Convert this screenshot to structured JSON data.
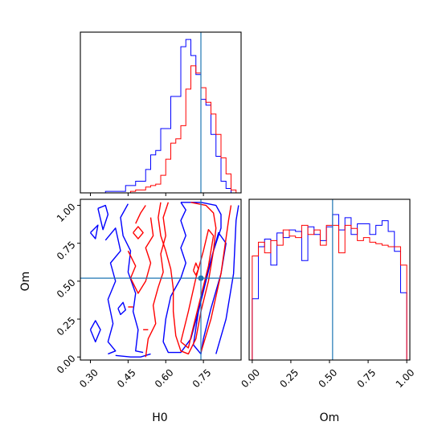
{
  "chart_data": {
    "type": "corner",
    "parameters": [
      "H0",
      "Om"
    ],
    "truth": {
      "H0": 0.74,
      "Om": 0.52,
      "color": "#1f77b4"
    },
    "colors": {
      "blue": "#0000ff",
      "red": "#ff0000",
      "truth": "#1f77b4"
    },
    "panels": [
      {
        "id": "hist-h0",
        "type": "histogram",
        "x_param": "H0",
        "xlim": [
          0.26,
          0.9
        ],
        "ylim": [
          0,
          1.1
        ],
        "bin_edges": [
          0.26,
          0.28,
          0.3,
          0.32,
          0.34,
          0.36,
          0.38,
          0.4,
          0.42,
          0.44,
          0.46,
          0.48,
          0.5,
          0.52,
          0.54,
          0.56,
          0.58,
          0.6,
          0.62,
          0.64,
          0.66,
          0.68,
          0.7,
          0.72,
          0.74,
          0.76,
          0.78,
          0.8,
          0.82,
          0.84,
          0.86,
          0.88,
          0.9
        ],
        "series": [
          {
            "name": "blue",
            "color": "#0000ff",
            "values": [
              0,
              0,
              0,
              0,
              0,
              0.01,
              0.01,
              0.01,
              0.01,
              0.05,
              0.05,
              0.08,
              0.08,
              0.16,
              0.26,
              0.29,
              0.44,
              0.44,
              0.66,
              0.66,
              1.0,
              1.05,
              0.94,
              0.81,
              0.64,
              0.6,
              0.4,
              0.25,
              0.08,
              0.03,
              0,
              0
            ]
          },
          {
            "name": "red",
            "color": "#ff0000",
            "values": [
              0,
              0,
              0,
              0,
              0,
              0,
              0,
              0,
              0,
              0,
              0.01,
              0.02,
              0.02,
              0.04,
              0.05,
              0.06,
              0.12,
              0.23,
              0.34,
              0.37,
              0.46,
              0.71,
              0.87,
              0.82,
              0.72,
              0.62,
              0.54,
              0.4,
              0.24,
              0.13,
              0.02,
              0
            ]
          }
        ]
      },
      {
        "id": "contour-h0-om",
        "type": "contour",
        "x_param": "H0",
        "y_param": "Om",
        "xlim": [
          0.26,
          0.9
        ],
        "ylim": [
          -0.02,
          1.04
        ],
        "xticks": [
          0.3,
          0.45,
          0.6,
          0.75
        ],
        "xtick_labels": [
          "0.30",
          "0.45",
          "0.60",
          "0.75"
        ],
        "yticks": [
          0.0,
          0.25,
          0.5,
          0.75,
          1.0
        ],
        "ytick_labels": [
          "0.00",
          "0.25",
          "0.50",
          "0.75",
          "1.00"
        ],
        "xlabel": "H0",
        "ylabel": "Om",
        "series": [
          {
            "name": "blue",
            "color": "#0000ff",
            "paths": [
              [
                [
                  0.66,
                  1.02
                ],
                [
                  0.68,
                  0.97
                ],
                [
                  0.66,
                  0.9
                ],
                [
                  0.68,
                  0.8
                ],
                [
                  0.66,
                  0.72
                ],
                [
                  0.68,
                  0.62
                ],
                [
                  0.66,
                  0.52
                ],
                [
                  0.62,
                  0.4
                ],
                [
                  0.6,
                  0.25
                ],
                [
                  0.59,
                  0.1
                ],
                [
                  0.61,
                  0.03
                ],
                [
                  0.66,
                  0.03
                ],
                [
                  0.7,
                  0.12
                ],
                [
                  0.73,
                  0.3
                ],
                [
                  0.76,
                  0.5
                ],
                [
                  0.79,
                  0.7
                ],
                [
                  0.82,
                  0.85
                ],
                [
                  0.82,
                  0.94
                ],
                [
                  0.8,
                  1.0
                ],
                [
                  0.74,
                  1.02
                ],
                [
                  0.66,
                  1.02
                ]
              ],
              [
                [
                  0.71,
                  0.08
                ],
                [
                  0.73,
                  0.3
                ],
                [
                  0.76,
                  0.52
                ],
                [
                  0.79,
                  0.7
                ],
                [
                  0.81,
                  0.82
                ],
                [
                  0.84,
                  0.75
                ],
                [
                  0.82,
                  0.55
                ],
                [
                  0.78,
                  0.32
                ],
                [
                  0.75,
                  0.12
                ],
                [
                  0.74,
                  0.02
                ],
                [
                  0.71,
                  0.08
                ]
              ],
              [
                [
                  0.8,
                  0.02
                ],
                [
                  0.84,
                  0.25
                ],
                [
                  0.87,
                  0.55
                ],
                [
                  0.88,
                  0.9
                ],
                [
                  0.89,
                  1.0
                ]
              ],
              [
                [
                  0.33,
                  0.98
                ],
                [
                  0.35,
                  0.84
                ],
                [
                  0.37,
                  0.94
                ],
                [
                  0.36,
                  1.0
                ],
                [
                  0.33,
                  0.98
                ]
              ],
              [
                [
                  0.3,
                  0.82
                ],
                [
                  0.33,
                  0.87
                ],
                [
                  0.32,
                  0.78
                ],
                [
                  0.3,
                  0.82
                ]
              ],
              [
                [
                  0.36,
                  0.77
                ],
                [
                  0.4,
                  0.85
                ],
                [
                  0.42,
                  0.7
                ],
                [
                  0.38,
                  0.62
                ],
                [
                  0.4,
                  0.5
                ],
                [
                  0.37,
                  0.38
                ],
                [
                  0.39,
                  0.22
                ],
                [
                  0.37,
                  0.1
                ],
                [
                  0.4,
                  0.04
                ],
                [
                  0.37,
                  0.02
                ]
              ],
              [
                [
                  0.45,
                  1.01
                ],
                [
                  0.42,
                  0.92
                ],
                [
                  0.43,
                  0.8
                ],
                [
                  0.46,
                  0.7
                ],
                [
                  0.45,
                  0.56
                ],
                [
                  0.48,
                  0.42
                ],
                [
                  0.47,
                  0.3
                ],
                [
                  0.49,
                  0.18
                ],
                [
                  0.48,
                  0.04
                ],
                [
                  0.51,
                  0.03
                ]
              ],
              [
                [
                  0.3,
                  0.18
                ],
                [
                  0.32,
                  0.24
                ],
                [
                  0.34,
                  0.18
                ],
                [
                  0.32,
                  0.1
                ],
                [
                  0.3,
                  0.18
                ]
              ],
              [
                [
                  0.41,
                  0.32
                ],
                [
                  0.43,
                  0.36
                ],
                [
                  0.44,
                  0.31
                ],
                [
                  0.42,
                  0.28
                ],
                [
                  0.41,
                  0.32
                ]
              ],
              [
                [
                  0.4,
                  0.01
                ],
                [
                  0.46,
                  0.0
                ],
                [
                  0.5,
                  0.0
                ],
                [
                  0.54,
                  0.02
                ]
              ]
            ]
          },
          {
            "name": "red",
            "color": "#ff0000",
            "paths": [
              [
                [
                  0.58,
                  1.02
                ],
                [
                  0.57,
                  0.92
                ],
                [
                  0.58,
                  0.8
                ],
                [
                  0.6,
                  0.7
                ],
                [
                  0.62,
                  0.58
                ],
                [
                  0.63,
                  0.45
                ],
                [
                  0.63,
                  0.3
                ],
                [
                  0.64,
                  0.14
                ],
                [
                  0.66,
                  0.04
                ],
                [
                  0.69,
                  0.02
                ],
                [
                  0.72,
                  0.12
                ],
                [
                  0.74,
                  0.3
                ],
                [
                  0.77,
                  0.5
                ],
                [
                  0.79,
                  0.7
                ],
                [
                  0.8,
                  0.85
                ],
                [
                  0.79,
                  0.95
                ],
                [
                  0.76,
                  1.0
                ],
                [
                  0.7,
                  1.02
                ]
              ],
              [
                [
                  0.66,
                  0.1
                ],
                [
                  0.69,
                  0.3
                ],
                [
                  0.72,
                  0.52
                ],
                [
                  0.75,
                  0.7
                ],
                [
                  0.77,
                  0.84
                ],
                [
                  0.79,
                  0.8
                ],
                [
                  0.77,
                  0.6
                ],
                [
                  0.74,
                  0.4
                ],
                [
                  0.71,
                  0.2
                ],
                [
                  0.69,
                  0.06
                ],
                [
                  0.66,
                  0.1
                ]
              ],
              [
                [
                  0.74,
                  0.03
                ],
                [
                  0.78,
                  0.25
                ],
                [
                  0.82,
                  0.55
                ],
                [
                  0.85,
                  0.9
                ],
                [
                  0.86,
                  1.0
                ]
              ],
              [
                [
                  0.48,
                  0.88
                ],
                [
                  0.5,
                  0.95
                ],
                [
                  0.52,
                  1.0
                ]
              ],
              [
                [
                  0.47,
                  0.82
                ],
                [
                  0.49,
                  0.86
                ],
                [
                  0.51,
                  0.82
                ],
                [
                  0.49,
                  0.78
                ],
                [
                  0.47,
                  0.82
                ]
              ],
              [
                [
                  0.45,
                  0.7
                ],
                [
                  0.48,
                  0.6
                ],
                [
                  0.46,
                  0.52
                ],
                [
                  0.49,
                  0.42
                ],
                [
                  0.52,
                  0.5
                ],
                [
                  0.54,
                  0.62
                ],
                [
                  0.52,
                  0.72
                ],
                [
                  0.55,
                  0.8
                ],
                [
                  0.54,
                  0.92
                ]
              ],
              [
                [
                  0.52,
                  0.0
                ],
                [
                  0.53,
                  0.12
                ],
                [
                  0.56,
                  0.22
                ],
                [
                  0.55,
                  0.34
                ],
                [
                  0.57,
                  0.46
                ],
                [
                  0.59,
                  0.56
                ],
                [
                  0.58,
                  0.68
                ],
                [
                  0.6,
                  0.8
                ],
                [
                  0.59,
                  0.92
                ],
                [
                  0.61,
                  1.02
                ]
              ],
              [
                [
                  0.45,
                  0.33
                ],
                [
                  0.47,
                  0.33
                ]
              ],
              [
                [
                  0.51,
                  0.18
                ],
                [
                  0.53,
                  0.18
                ]
              ],
              [
                [
                  0.71,
                  0.57
                ],
                [
                  0.72,
                  0.62
                ],
                [
                  0.73,
                  0.58
                ],
                [
                  0.72,
                  0.54
                ],
                [
                  0.71,
                  0.57
                ]
              ]
            ]
          }
        ]
      },
      {
        "id": "hist-om",
        "type": "histogram",
        "x_param": "Om",
        "xlim": [
          -0.02,
          1.02
        ],
        "ylim": [
          0,
          1.05
        ],
        "xticks": [
          0.0,
          0.25,
          0.5,
          0.75,
          1.0
        ],
        "xtick_labels": [
          "0.00",
          "0.25",
          "0.50",
          "0.75",
          "1.00"
        ],
        "xlabel": "Om",
        "bin_edges": [
          0.0,
          0.04,
          0.08,
          0.12,
          0.16,
          0.2,
          0.24,
          0.28,
          0.32,
          0.36,
          0.4,
          0.44,
          0.48,
          0.52,
          0.56,
          0.6,
          0.64,
          0.68,
          0.72,
          0.76,
          0.8,
          0.84,
          0.88,
          0.92,
          0.96,
          1.0
        ],
        "series": [
          {
            "name": "blue",
            "color": "#0000ff",
            "values": [
              0.4,
              0.74,
              0.79,
              0.62,
              0.83,
              0.8,
              0.85,
              0.84,
              0.65,
              0.87,
              0.82,
              0.78,
              0.87,
              0.95,
              0.85,
              0.93,
              0.82,
              0.89,
              0.89,
              0.82,
              0.88,
              0.91,
              0.84,
              0.71,
              0.44
            ]
          },
          {
            "name": "red",
            "color": "#ff0000",
            "values": [
              0.68,
              0.77,
              0.7,
              0.78,
              0.75,
              0.85,
              0.81,
              0.8,
              0.88,
              0.82,
              0.85,
              0.75,
              0.88,
              0.88,
              0.7,
              0.88,
              0.86,
              0.78,
              0.8,
              0.77,
              0.76,
              0.75,
              0.74,
              0.74,
              0.62
            ]
          }
        ]
      }
    ]
  }
}
